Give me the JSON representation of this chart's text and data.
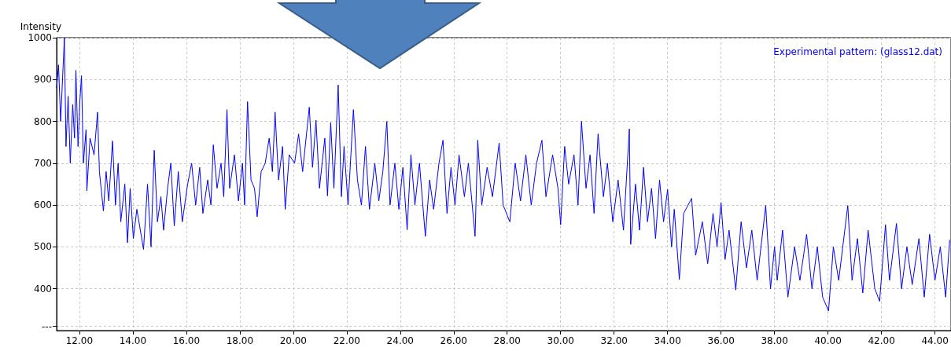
{
  "chart_data": {
    "type": "line",
    "ylabel": "Intensity",
    "x": [
      11.15,
      11.22,
      11.3,
      11.44,
      11.5,
      11.58,
      11.66,
      11.75,
      11.82,
      11.87,
      11.95,
      12.02,
      12.08,
      12.15,
      12.25,
      12.28,
      12.4,
      12.55,
      12.68,
      12.75,
      12.9,
      13.0,
      13.1,
      13.24,
      13.35,
      13.45,
      13.55,
      13.7,
      13.8,
      13.9,
      14.02,
      14.15,
      14.4,
      14.55,
      14.68,
      14.8,
      14.92,
      15.05,
      15.15,
      15.3,
      15.42,
      15.55,
      15.7,
      15.85,
      16.05,
      16.2,
      16.35,
      16.5,
      16.62,
      16.8,
      16.92,
      17.01,
      17.15,
      17.3,
      17.4,
      17.52,
      17.62,
      17.8,
      17.95,
      18.1,
      18.18,
      18.29,
      18.42,
      18.55,
      18.65,
      18.8,
      18.95,
      19.1,
      19.22,
      19.32,
      19.45,
      19.6,
      19.7,
      19.85,
      20.05,
      20.2,
      20.35,
      20.6,
      20.72,
      20.85,
      20.98,
      21.18,
      21.28,
      21.4,
      21.52,
      21.68,
      21.8,
      21.9,
      22.05,
      22.25,
      22.4,
      22.55,
      22.7,
      22.85,
      23.05,
      23.2,
      23.35,
      23.5,
      23.62,
      23.8,
      23.95,
      24.1,
      24.26,
      24.4,
      24.55,
      24.72,
      24.94,
      25.1,
      25.25,
      25.45,
      25.6,
      25.75,
      25.9,
      26.05,
      26.2,
      26.4,
      26.55,
      26.8,
      26.9,
      27.05,
      27.25,
      27.45,
      27.7,
      27.85,
      28.1,
      28.3,
      28.5,
      28.7,
      28.9,
      29.1,
      29.3,
      29.45,
      29.7,
      29.9,
      30.0,
      30.15,
      30.3,
      30.5,
      30.65,
      30.78,
      30.95,
      31.1,
      31.25,
      31.4,
      31.6,
      31.75,
      31.95,
      32.15,
      32.35,
      32.57,
      32.62,
      32.8,
      32.95,
      33.1,
      33.25,
      33.4,
      33.55,
      33.7,
      33.85,
      34.0,
      34.15,
      34.25,
      34.44,
      34.6,
      34.9,
      35.05,
      35.3,
      35.5,
      35.7,
      35.85,
      36.0,
      36.15,
      36.3,
      36.55,
      36.75,
      36.95,
      37.15,
      37.35,
      37.67,
      37.85,
      38.0,
      38.1,
      38.3,
      38.5,
      38.75,
      38.95,
      39.2,
      39.4,
      39.6,
      39.8,
      40.02,
      40.2,
      40.4,
      40.74,
      40.9,
      41.1,
      41.3,
      41.5,
      41.75,
      41.93,
      42.15,
      42.3,
      42.56,
      42.75,
      42.95,
      43.15,
      43.4,
      43.6,
      43.8,
      44.0,
      44.2,
      44.4,
      44.55
    ],
    "series": [
      {
        "name": "Experimental pattern: (glass12.dat)",
        "color": "#0000ff",
        "values": [
          880,
          935,
          800,
          1000,
          740,
          860,
          700,
          840,
          760,
          922,
          740,
          850,
          909,
          700,
          780,
          634,
          760,
          720,
          822,
          680,
          586,
          680,
          610,
          753,
          600,
          700,
          560,
          650,
          510,
          640,
          520,
          590,
          494,
          650,
          500,
          731,
          560,
          620,
          540,
          640,
          700,
          550,
          680,
          560,
          650,
          700,
          600,
          690,
          580,
          660,
          600,
          744,
          640,
          700,
          620,
          828,
          640,
          720,
          610,
          700,
          600,
          847,
          660,
          640,
          572,
          680,
          700,
          760,
          680,
          822,
          660,
          740,
          590,
          720,
          700,
          770,
          680,
          834,
          690,
          803,
          640,
          760,
          622,
          797,
          640,
          887,
          620,
          740,
          600,
          828,
          660,
          600,
          740,
          590,
          700,
          610,
          680,
          800,
          600,
          700,
          590,
          690,
          541,
          720,
          600,
          700,
          525,
          660,
          590,
          700,
          755,
          580,
          690,
          600,
          720,
          620,
          700,
          525,
          755,
          600,
          690,
          620,
          748,
          600,
          560,
          700,
          610,
          720,
          600,
          700,
          755,
          620,
          720,
          640,
          553,
          740,
          650,
          720,
          600,
          800,
          640,
          720,
          580,
          770,
          620,
          700,
          560,
          660,
          540,
          782,
          506,
          650,
          540,
          690,
          560,
          640,
          520,
          660,
          560,
          637,
          500,
          590,
          422,
          580,
          616,
          480,
          560,
          460,
          580,
          500,
          606,
          470,
          540,
          397,
          560,
          450,
          540,
          420,
          599,
          400,
          500,
          420,
          540,
          380,
          500,
          420,
          530,
          400,
          500,
          380,
          347,
          500,
          420,
          599,
          420,
          520,
          390,
          540,
          400,
          370,
          553,
          420,
          556,
          400,
          500,
          410,
          520,
          380,
          530,
          420,
          500,
          380,
          516
        ]
      }
    ],
    "xlim": [
      11.15,
      44.6
    ],
    "ylim": [
      300,
      1000
    ],
    "xticks": [
      {
        "value": 12,
        "label": "12.00"
      },
      {
        "value": 14,
        "label": "14.00"
      },
      {
        "value": 16,
        "label": "16.00"
      },
      {
        "value": 18,
        "label": "18.00"
      },
      {
        "value": 20,
        "label": "20.00"
      },
      {
        "value": 22,
        "label": "22.00"
      },
      {
        "value": 24,
        "label": "24.00"
      },
      {
        "value": 26,
        "label": "26.00"
      },
      {
        "value": 28,
        "label": "28.00"
      },
      {
        "value": 30,
        "label": "30.00"
      },
      {
        "value": 32,
        "label": "32.00"
      },
      {
        "value": 34,
        "label": "34.00"
      },
      {
        "value": 36,
        "label": "36.00"
      },
      {
        "value": 38,
        "label": "38.00"
      },
      {
        "value": 40,
        "label": "40.00"
      },
      {
        "value": 42,
        "label": "42.00"
      },
      {
        "value": 44,
        "label": "44.00"
      }
    ],
    "yticks": [
      {
        "value": 310,
        "label": "---"
      },
      400,
      500,
      600,
      700,
      800,
      900,
      1000
    ],
    "grid": true,
    "legend": "top right",
    "marker": "none",
    "line_style": "solid"
  }
}
